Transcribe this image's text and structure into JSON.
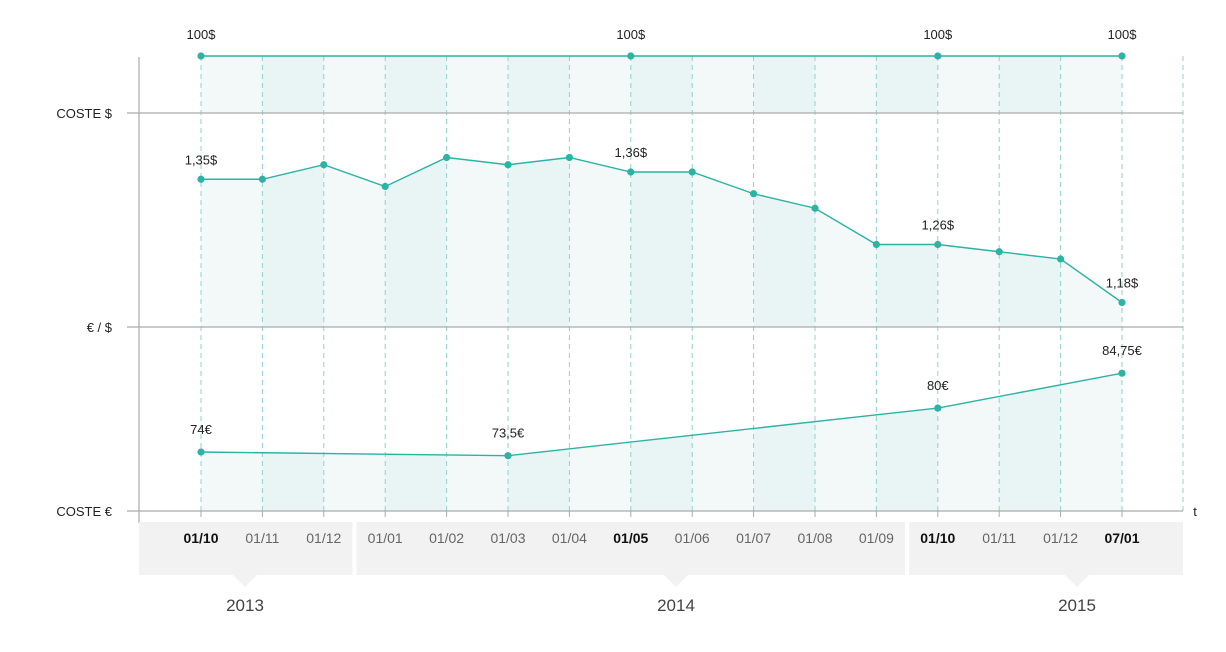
{
  "chart_data": {
    "type": "line",
    "x": [
      "01/10",
      "01/11",
      "01/12",
      "01/01",
      "01/02",
      "01/03",
      "01/04",
      "01/05",
      "01/06",
      "01/07",
      "01/08",
      "01/09",
      "01/10",
      "01/11",
      "01/12",
      "07/01"
    ],
    "bold_ticks": [
      0,
      7,
      12,
      15
    ],
    "x_axis_end_label": "t",
    "years": [
      {
        "label": "2013",
        "from": 0,
        "to": 2
      },
      {
        "label": "2014",
        "from": 3,
        "to": 11
      },
      {
        "label": "2015",
        "from": 12,
        "to": 15
      }
    ],
    "row_labels": [
      "COSTE $",
      "€ / $",
      "COSTE €"
    ],
    "series": [
      {
        "name": "COSTE $",
        "values": [
          100,
          100,
          100,
          100,
          100,
          100,
          100,
          100,
          100,
          100,
          100,
          100,
          100,
          100,
          100,
          100
        ],
        "labels": {
          "0": "100$",
          "7": "100$",
          "12": "100$",
          "15": "100$"
        },
        "markers": [
          0,
          7,
          12,
          15
        ]
      },
      {
        "name": "€ / $",
        "values": [
          1.35,
          1.35,
          1.37,
          1.34,
          1.38,
          1.37,
          1.38,
          1.36,
          1.36,
          1.33,
          1.31,
          1.26,
          1.26,
          1.25,
          1.24,
          1.18
        ],
        "labels": {
          "0": "1,35$",
          "7": "1,36$",
          "12": "1,26$",
          "15": "1,18$"
        }
      },
      {
        "name": "COSTE €",
        "points": [
          [
            0,
            74
          ],
          [
            5,
            73.5
          ],
          [
            12,
            80
          ],
          [
            15,
            84.75
          ]
        ],
        "labels": {
          "0": "74€",
          "5": "73,5€",
          "12": "80€",
          "15": "84,75€"
        }
      }
    ],
    "colors": {
      "line": "#2bb3a3",
      "fill": "#e9f5f5",
      "fill_alt": "#f3f9f9",
      "axis": "#aaaaaa",
      "year_box": "#f2f2f2"
    }
  }
}
